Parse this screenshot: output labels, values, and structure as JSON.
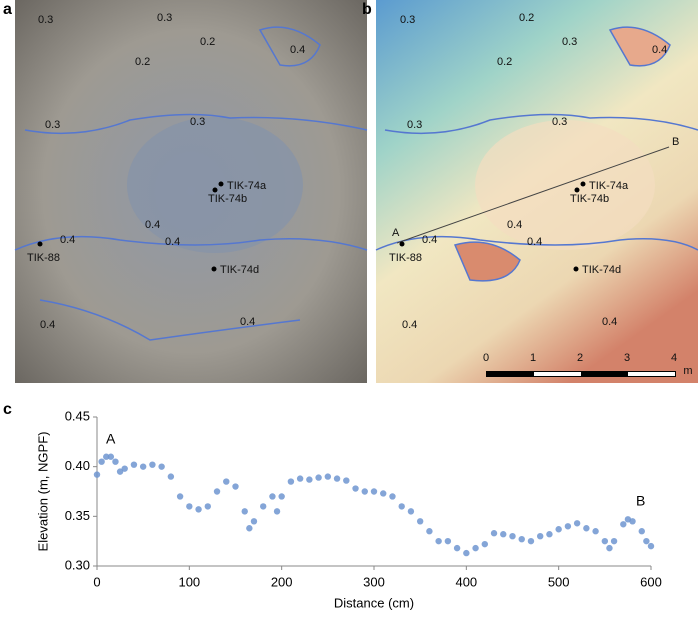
{
  "panel_labels": [
    "a",
    "b",
    "c"
  ],
  "map_a": {
    "contour_labels": [
      "0.3",
      "0.3",
      "0.2",
      "0.4",
      "0.2",
      "0.3",
      "0.3",
      "0.4",
      "0.4",
      "0.4",
      "0.4",
      "0.4"
    ],
    "samples": [
      "TIK-74a",
      "TIK-74b",
      "TIK-74d",
      "TIK-88"
    ]
  },
  "map_b": {
    "contour_labels": [
      "0.3",
      "0.2",
      "0.3",
      "0.4",
      "0.2",
      "0.3",
      "0.3",
      "0.4",
      "0.4",
      "0.4",
      "0.4",
      "0.4"
    ],
    "samples": [
      "TIK-74a",
      "TIK-74b",
      "TIK-74d",
      "TIK-88"
    ],
    "profile_ends": [
      "A",
      "B"
    ],
    "scale_labels": [
      "0",
      "1",
      "2",
      "3",
      "4",
      "m"
    ]
  },
  "chart_data": {
    "type": "scatter",
    "x_label": "Distance (cm)",
    "y_label": "Elevation (m, NGPF)",
    "annotations": [
      "A",
      "B"
    ],
    "color": "#6f95d0",
    "xlim": [
      0,
      600
    ],
    "xticks": [
      0,
      100,
      200,
      300,
      400,
      500,
      600
    ],
    "ylim": [
      0.3,
      0.45
    ],
    "yticks": [
      {
        "value": 0.3,
        "label": "0.30"
      },
      {
        "value": 0.35,
        "label": "0.35"
      },
      {
        "value": 0.4,
        "label": "0.40"
      },
      {
        "value": 0.45,
        "label": "0.45"
      }
    ],
    "x": [
      0,
      5,
      10,
      15,
      20,
      25,
      30,
      40,
      50,
      60,
      70,
      80,
      90,
      100,
      110,
      120,
      130,
      140,
      150,
      160,
      165,
      170,
      180,
      190,
      195,
      200,
      210,
      220,
      230,
      240,
      250,
      260,
      270,
      280,
      290,
      300,
      310,
      320,
      330,
      340,
      350,
      360,
      370,
      380,
      390,
      400,
      410,
      420,
      430,
      440,
      450,
      460,
      470,
      480,
      490,
      500,
      510,
      520,
      530,
      540,
      550,
      555,
      560,
      570,
      575,
      580,
      590,
      595,
      600
    ],
    "values": [
      0.392,
      0.405,
      0.41,
      0.41,
      0.405,
      0.395,
      0.398,
      0.402,
      0.4,
      0.402,
      0.4,
      0.39,
      0.37,
      0.36,
      0.357,
      0.36,
      0.375,
      0.385,
      0.38,
      0.355,
      0.338,
      0.345,
      0.36,
      0.37,
      0.355,
      0.37,
      0.385,
      0.388,
      0.387,
      0.389,
      0.39,
      0.388,
      0.386,
      0.378,
      0.375,
      0.375,
      0.373,
      0.37,
      0.36,
      0.355,
      0.345,
      0.335,
      0.325,
      0.325,
      0.318,
      0.313,
      0.318,
      0.322,
      0.333,
      0.332,
      0.33,
      0.327,
      0.325,
      0.33,
      0.332,
      0.337,
      0.34,
      0.343,
      0.338,
      0.335,
      0.325,
      0.318,
      0.325,
      0.342,
      0.347,
      0.345,
      0.335,
      0.325,
      0.32
    ]
  }
}
